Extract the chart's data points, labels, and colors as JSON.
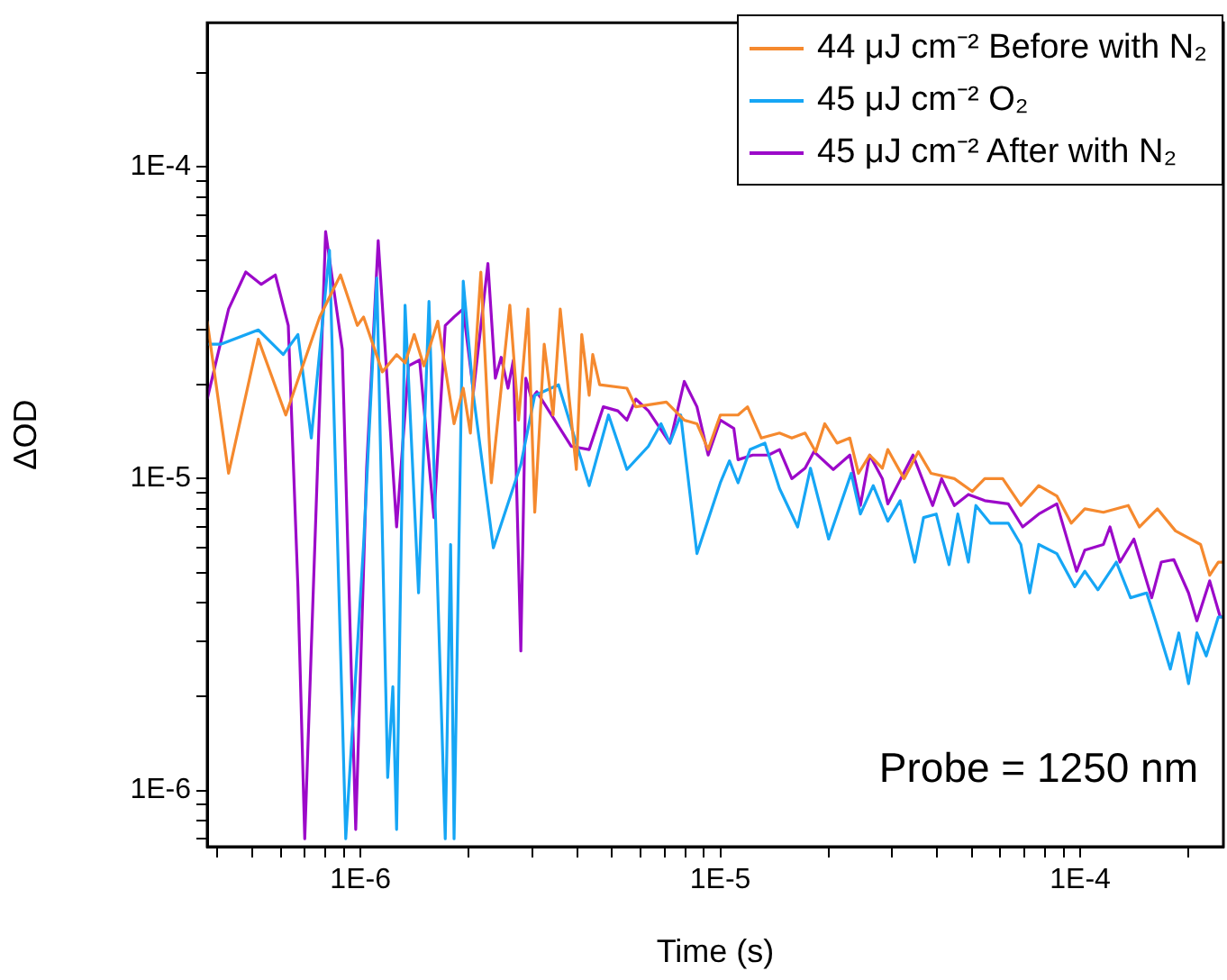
{
  "chart_data": {
    "type": "line",
    "xlabel": "Time (s)",
    "ylabel": "ΔOD",
    "log": "xy",
    "legend": "top right",
    "grid": false,
    "marker": "none",
    "line_style": "solid",
    "xlim": [
      3.75e-07,
      0.00025
    ],
    "ylim": [
      6.6e-07,
      0.00029
    ],
    "xticks": [
      {
        "value": 4e-07,
        "label": null
      },
      {
        "value": 5e-07,
        "label": null
      },
      {
        "value": 6e-07,
        "label": null
      },
      {
        "value": 7e-07,
        "label": null
      },
      {
        "value": 8e-07,
        "label": null
      },
      {
        "value": 9e-07,
        "label": null
      },
      {
        "value": 1e-06,
        "label": "1E-6"
      },
      {
        "value": 2e-06,
        "label": null
      },
      {
        "value": 3e-06,
        "label": null
      },
      {
        "value": 4e-06,
        "label": null
      },
      {
        "value": 5e-06,
        "label": null
      },
      {
        "value": 6e-06,
        "label": null
      },
      {
        "value": 7e-06,
        "label": null
      },
      {
        "value": 8e-06,
        "label": null
      },
      {
        "value": 9e-06,
        "label": null
      },
      {
        "value": 1e-05,
        "label": "1E-5"
      },
      {
        "value": 2e-05,
        "label": null
      },
      {
        "value": 3e-05,
        "label": null
      },
      {
        "value": 4e-05,
        "label": null
      },
      {
        "value": 5e-05,
        "label": null
      },
      {
        "value": 6e-05,
        "label": null
      },
      {
        "value": 7e-05,
        "label": null
      },
      {
        "value": 8e-05,
        "label": null
      },
      {
        "value": 9e-05,
        "label": null
      },
      {
        "value": 0.0001,
        "label": "1E-4"
      },
      {
        "value": 0.0002,
        "label": null
      }
    ],
    "yticks": [
      {
        "value": 7e-07,
        "label": null
      },
      {
        "value": 8e-07,
        "label": null
      },
      {
        "value": 9e-07,
        "label": null
      },
      {
        "value": 1e-06,
        "label": "1E-6"
      },
      {
        "value": 2e-06,
        "label": null
      },
      {
        "value": 3e-06,
        "label": null
      },
      {
        "value": 4e-06,
        "label": null
      },
      {
        "value": 5e-06,
        "label": null
      },
      {
        "value": 6e-06,
        "label": null
      },
      {
        "value": 7e-06,
        "label": null
      },
      {
        "value": 8e-06,
        "label": null
      },
      {
        "value": 9e-06,
        "label": null
      },
      {
        "value": 1e-05,
        "label": "1E-5"
      },
      {
        "value": 2e-05,
        "label": null
      },
      {
        "value": 3e-05,
        "label": null
      },
      {
        "value": 4e-05,
        "label": null
      },
      {
        "value": 5e-05,
        "label": null
      },
      {
        "value": 6e-05,
        "label": null
      },
      {
        "value": 7e-05,
        "label": null
      },
      {
        "value": 8e-05,
        "label": null
      },
      {
        "value": 9e-05,
        "label": null
      },
      {
        "value": 0.0001,
        "label": "1E-4"
      },
      {
        "value": 0.0002,
        "label": null
      }
    ],
    "annotations": [
      "Probe = 1250 nm"
    ],
    "series": [
      {
        "name": "44 μJ cm⁻² Before with N₂",
        "color": "#f5892e",
        "x": [
          3.75e-07,
          4.3e-07,
          5.2e-07,
          6.2e-07,
          7.7e-07,
          8.8e-07,
          9.8e-07,
          1.02e-06,
          1.15e-06,
          1.26e-06,
          1.33e-06,
          1.41e-06,
          1.5e-06,
          1.64e-06,
          1.82e-06,
          1.93e-06,
          2.02e-06,
          2.16e-06,
          2.31e-06,
          2.6e-06,
          2.75e-06,
          2.92e-06,
          3.05e-06,
          3.24e-06,
          3.43e-06,
          3.59e-06,
          3.98e-06,
          4.12e-06,
          4.32e-06,
          4.42e-06,
          4.62e-06,
          5.5e-06,
          5.82e-06,
          7.08e-06,
          7.94e-06,
          8.61e-06,
          9.25e-06,
          1e-05,
          1.12e-05,
          1.19e-05,
          1.3e-05,
          1.46e-05,
          1.58e-05,
          1.72e-05,
          1.84e-05,
          1.95e-05,
          2.11e-05,
          2.29e-05,
          2.42e-05,
          2.6e-05,
          2.82e-05,
          2.92e-05,
          3.24e-05,
          3.55e-05,
          3.85e-05,
          4.47e-05,
          5.01e-05,
          5.43e-05,
          6.09e-05,
          6.84e-05,
          7.67e-05,
          8.61e-05,
          9.44e-05,
          0.000103,
          0.000116,
          0.000136,
          0.000146,
          0.000164,
          0.000184,
          0.000216,
          0.000229,
          0.000242,
          0.00025
        ],
        "values": [
          3.2e-05,
          1.04e-05,
          2.8e-05,
          1.6e-05,
          3.3e-05,
          4.5e-05,
          3.1e-05,
          3.3e-05,
          2.2e-05,
          2.5e-05,
          2.35e-05,
          2.9e-05,
          2.3e-05,
          3.2e-05,
          1.5e-05,
          1.95e-05,
          1.4e-05,
          4.6e-05,
          9.7e-06,
          3.6e-05,
          1.54e-05,
          3.5e-05,
          7.8e-06,
          2.7e-05,
          1.6e-05,
          3.5e-05,
          1.07e-05,
          2.9e-05,
          1.85e-05,
          2.5e-05,
          2e-05,
          1.95e-05,
          1.7e-05,
          1.76e-05,
          1.54e-05,
          1.5e-05,
          1.24e-05,
          1.6e-05,
          1.6e-05,
          1.7e-05,
          1.35e-05,
          1.4e-05,
          1.35e-05,
          1.4e-05,
          1.22e-05,
          1.5e-05,
          1.3e-05,
          1.35e-05,
          1.04e-05,
          1.19e-05,
          1.08e-05,
          1.24e-05,
          1e-05,
          1.22e-05,
          1.04e-05,
          1e-05,
          9.1e-06,
          1e-05,
          1e-05,
          8.2e-06,
          9.5e-06,
          8.8e-06,
          7.2e-06,
          8e-06,
          7.8e-06,
          8.2e-06,
          7e-06,
          8e-06,
          6.8e-06,
          6.15e-06,
          4.9e-06,
          5.4e-06,
          5.4e-06
        ]
      },
      {
        "name": "45 μJ cm⁻² O₂",
        "color": "#16a6f5",
        "x": [
          3.75e-07,
          4.1e-07,
          5.2e-07,
          6.1e-07,
          6.7e-07,
          7.3e-07,
          8.2e-07,
          9.1e-07,
          1.02e-06,
          1.11e-06,
          1.19e-06,
          1.23e-06,
          1.26e-06,
          1.33e-06,
          1.45e-06,
          1.55e-06,
          1.72e-06,
          1.78e-06,
          1.82e-06,
          1.93e-06,
          2.06e-06,
          2.34e-06,
          2.79e-06,
          3.05e-06,
          3.55e-06,
          4.32e-06,
          4.89e-06,
          5.5e-06,
          6.31e-06,
          6.84e-06,
          7.24e-06,
          7.76e-06,
          8.61e-06,
          1e-05,
          1.06e-05,
          1.12e-05,
          1.21e-05,
          1.33e-05,
          1.46e-05,
          1.64e-05,
          1.78e-05,
          2e-05,
          2.31e-05,
          2.45e-05,
          2.66e-05,
          2.92e-05,
          3.16e-05,
          3.47e-05,
          3.67e-05,
          3.98e-05,
          4.32e-05,
          4.57e-05,
          4.89e-05,
          5.13e-05,
          5.62e-05,
          6.31e-05,
          6.84e-05,
          7.24e-05,
          7.67e-05,
          8.61e-05,
          9.66e-05,
          0.000103,
          0.000112,
          0.000126,
          0.000138,
          0.000153,
          0.000162,
          0.000178,
          0.000188,
          0.0002,
          0.000211,
          0.000224,
          0.000242,
          0.00025
        ],
        "values": [
          2.7e-05,
          2.7e-05,
          3e-05,
          2.5e-05,
          2.9e-05,
          1.35e-05,
          5.4e-05,
          7e-07,
          6.15e-06,
          4.4e-05,
          1.1e-06,
          2.15e-06,
          7.5e-07,
          3.6e-05,
          4.3e-06,
          3.7e-05,
          7e-07,
          6.15e-06,
          7e-07,
          4.3e-05,
          1.85e-05,
          6e-06,
          1.11e-05,
          1.85e-05,
          2e-05,
          9.5e-06,
          1.6e-05,
          1.07e-05,
          1.27e-05,
          1.5e-05,
          1.3e-05,
          1.6e-05,
          5.75e-06,
          9.7e-06,
          1.14e-05,
          9.7e-06,
          1.24e-05,
          1.3e-05,
          9.3e-06,
          7e-06,
          1.08e-05,
          6.4e-06,
          1.04e-05,
          7.7e-06,
          9.5e-06,
          7.3e-06,
          8.5e-06,
          5.4e-06,
          7.5e-06,
          7.7e-06,
          5.3e-06,
          7.7e-06,
          5.4e-06,
          8.2e-06,
          7.2e-06,
          7.2e-06,
          6.15e-06,
          4.3e-06,
          6.15e-06,
          5.75e-06,
          4.5e-06,
          5.05e-06,
          4.4e-06,
          5.4e-06,
          4.15e-06,
          4.3e-06,
          3.5e-06,
          2.45e-06,
          3.2e-06,
          2.2e-06,
          3.2e-06,
          2.7e-06,
          3.6e-06,
          3.6e-06
        ]
      },
      {
        "name": "45 μJ cm⁻² After with N₂",
        "color": "#9c09c9",
        "x": [
          3.75e-07,
          4.3e-07,
          4.8e-07,
          5.3e-07,
          5.8e-07,
          6.3e-07,
          6.7e-07,
          7e-07,
          8e-07,
          8.9e-07,
          9.7e-07,
          1.04e-06,
          1.12e-06,
          1.26e-06,
          1.36e-06,
          1.46e-06,
          1.6e-06,
          1.72e-06,
          1.82e-06,
          1.93e-06,
          2.06e-06,
          2.26e-06,
          2.37e-06,
          2.46e-06,
          2.57e-06,
          2.66e-06,
          2.79e-06,
          2.88e-06,
          2.99e-06,
          3.09e-06,
          3.85e-06,
          4.32e-06,
          4.73e-06,
          5.19e-06,
          5.5e-06,
          5.82e-06,
          6.31e-06,
          7.24e-06,
          7.94e-06,
          8.61e-06,
          9.25e-06,
          1e-05,
          1.09e-05,
          1.12e-05,
          1.23e-05,
          1.36e-05,
          1.46e-05,
          1.58e-05,
          1.72e-05,
          1.82e-05,
          2.06e-05,
          2.29e-05,
          2.45e-05,
          2.6e-05,
          2.82e-05,
          2.92e-05,
          3.43e-05,
          3.89e-05,
          4.12e-05,
          4.47e-05,
          4.89e-05,
          5.43e-05,
          6.31e-05,
          6.92e-05,
          7.67e-05,
          8.61e-05,
          9.77e-05,
          0.000103,
          0.000116,
          0.000121,
          0.000129,
          0.000141,
          0.000158,
          0.000168,
          0.000182,
          0.0002,
          0.000211,
          0.000229,
          0.000245,
          0.00025
        ],
        "values": [
          1.8e-05,
          3.5e-05,
          4.6e-05,
          4.2e-05,
          4.5e-05,
          3.1e-05,
          4.5e-06,
          7e-07,
          6.2e-05,
          2.6e-05,
          7.5e-07,
          1.08e-05,
          5.8e-05,
          7e-06,
          2.3e-05,
          2.4e-05,
          7.5e-06,
          3.1e-05,
          3.3e-05,
          3.5e-05,
          1.9e-05,
          4.9e-05,
          2.1e-05,
          2.45e-05,
          1.95e-05,
          2.4e-05,
          2.8e-06,
          2.1e-05,
          1.8e-05,
          1.9e-05,
          1.27e-05,
          1.24e-05,
          1.7e-05,
          1.65e-05,
          1.54e-05,
          1.8e-05,
          1.65e-05,
          1.3e-05,
          2.05e-05,
          1.7e-05,
          1.19e-05,
          1.54e-05,
          1.45e-05,
          1.15e-05,
          1.19e-05,
          1.19e-05,
          1.24e-05,
          1e-05,
          1.08e-05,
          1.22e-05,
          1.07e-05,
          1.19e-05,
          8.2e-06,
          1.19e-05,
          1e-05,
          8.3e-06,
          1.19e-05,
          8.2e-06,
          1e-05,
          8.2e-06,
          8.9e-06,
          8.5e-06,
          8.3e-06,
          7e-06,
          7.7e-06,
          8.3e-06,
          5.05e-06,
          5.9e-06,
          6.15e-06,
          7e-06,
          5.4e-06,
          6.4e-06,
          4.15e-06,
          5.4e-06,
          5.5e-06,
          4.3e-06,
          3.5e-06,
          4.7e-06,
          3.6e-06,
          3.6e-06
        ]
      }
    ]
  }
}
